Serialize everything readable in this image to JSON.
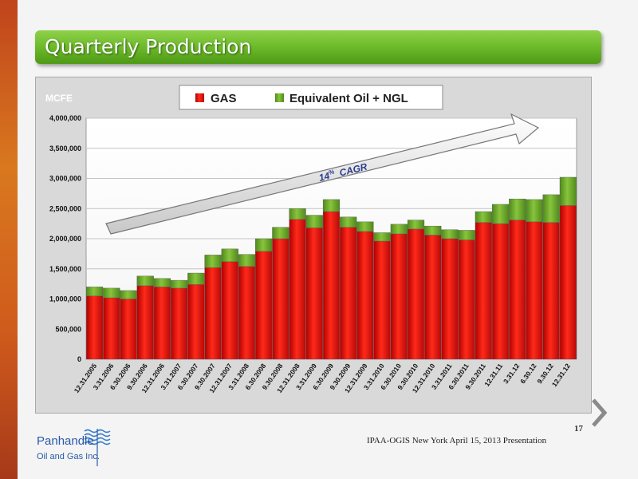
{
  "slide": {
    "title": "Quarterly Production",
    "page_number": "17",
    "footer": "IPAA-OGIS New York April 15, 2013 Presentation",
    "logo_name": "Panhandle",
    "logo_subtitle": "Oil and Gas Inc."
  },
  "colors": {
    "gas": "#e01010",
    "oil_ngl": "#6cab2a",
    "title_bar": "#6cba2a",
    "accent_left": "#d9781f"
  },
  "chart_data": {
    "type": "bar",
    "stacked": true,
    "ylabel": "MCFE",
    "ylim": [
      0,
      4000000
    ],
    "yticks": [
      "0",
      "500,000",
      "1,000,000",
      "1,500,000",
      "2,000,000",
      "2,500,000",
      "3,000,000",
      "3,500,000",
      "4,000,000"
    ],
    "legend_position": "top",
    "grid": true,
    "annotation": {
      "number": "14",
      "superscript": "%",
      "text": "CAGR"
    },
    "categories": [
      "12.31.2005",
      "3.31.2006",
      "6.30.2006",
      "9.30.2006",
      "12.31.2006",
      "3.31.2007",
      "6.30.2007",
      "9.30.2007",
      "12.31.2007",
      "3.31.2008",
      "6.30.2008",
      "9.30.2008",
      "12.31.2008",
      "3.31.2009",
      "6.30.2009",
      "9.30.2009",
      "12.31.2009",
      "3.31.2010",
      "6.30.2010",
      "9.30.2010",
      "12.31.2010",
      "3.31.2011",
      "6.30.2011",
      "9.30.2011",
      "12.31.11",
      "3.31.12",
      "6.30.12",
      "9.30.12",
      "12.31.12"
    ],
    "series": [
      {
        "name": "GAS",
        "values": [
          1050000,
          1020000,
          1000000,
          1220000,
          1200000,
          1180000,
          1240000,
          1520000,
          1620000,
          1540000,
          1790000,
          2000000,
          2320000,
          2180000,
          2450000,
          2190000,
          2120000,
          1960000,
          2080000,
          2160000,
          2060000,
          2000000,
          1980000,
          2270000,
          2250000,
          2310000,
          2280000,
          2270000,
          2550000
        ]
      },
      {
        "name": "Equivalent Oil + NGL",
        "values": [
          150000,
          160000,
          140000,
          160000,
          140000,
          130000,
          190000,
          210000,
          210000,
          200000,
          210000,
          190000,
          180000,
          210000,
          200000,
          170000,
          160000,
          140000,
          160000,
          150000,
          150000,
          150000,
          160000,
          180000,
          320000,
          350000,
          370000,
          460000,
          470000
        ]
      }
    ]
  }
}
